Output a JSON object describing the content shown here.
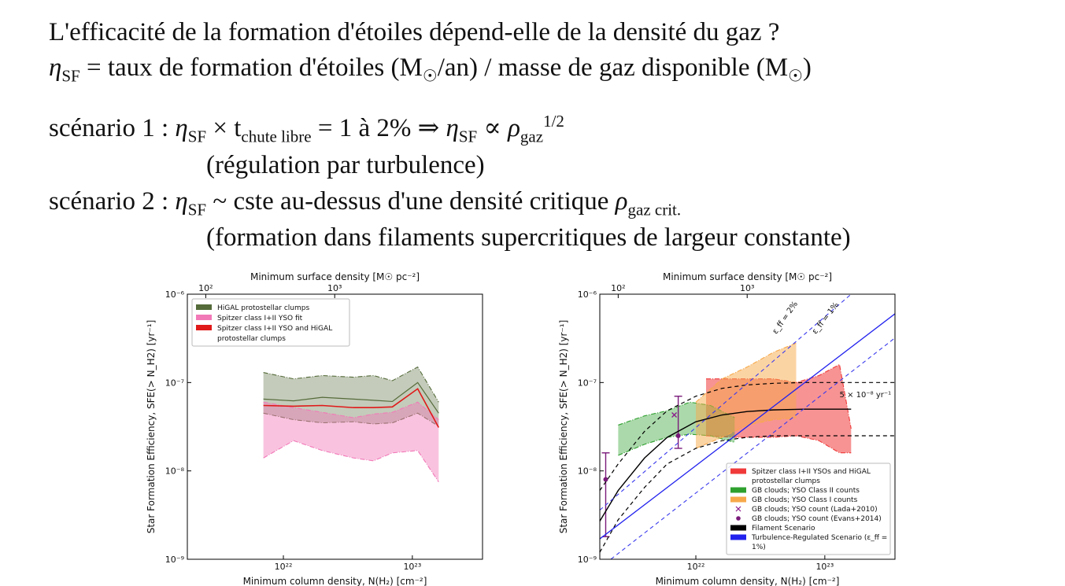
{
  "slide": {
    "line1": "L'efficacité de la formation d'étoiles dépend-elle de la densité du gaz ?",
    "line2": {
      "eta": "η",
      "eta_sub": "SF",
      "text_a": " = taux de formation d'étoiles (M",
      "sun": "☉",
      "text_b": "/an)  /  masse de gaz disponible (M",
      "sun2": "☉",
      "text_c": ")"
    },
    "scenario1": {
      "label": "scénario 1 :  ",
      "eta": "η",
      "eta_sub": "SF",
      "times": " × t",
      "t_sub": "chute libre",
      "eq": " = 1 à 2%  ⇒  ",
      "eta2": "η",
      "eta2_sub": "SF",
      "prop": " ∝ ",
      "rho": "ρ",
      "rho_sub": "gaz",
      "rho_sup": "1/2",
      "note": "(régulation par turbulence)"
    },
    "scenario2": {
      "label": "scénario 2 :  ",
      "eta": "η",
      "eta_sub": "SF",
      "text": " ~ cste au-dessus d'une densité critique ",
      "rho": "ρ",
      "rho_sub": "gaz crit.",
      "note": "(formation dans filaments supercritiques de largeur constante)"
    }
  },
  "chart_data": [
    {
      "type": "area",
      "title": "",
      "xlabel": "Minimum column density, N(H₂) [cm⁻²]",
      "ylabel": "Star Formation Efficiency, SFE(> N_H2) [yr⁻¹]",
      "top_xlabel": "Minimum surface density [M☉ pc⁻²]",
      "xscale": "log",
      "yscale": "log",
      "xlim": [
        1.8e+21,
        3.5e+23
      ],
      "ylim": [
        1e-09,
        1e-06
      ],
      "x_ticks": [
        {
          "v": 1e+22,
          "label": "10²²"
        },
        {
          "v": 1e+23,
          "label": "10²³"
        }
      ],
      "y_ticks": [
        {
          "v": 1e-09,
          "label": "10⁻⁹"
        },
        {
          "v": 1e-08,
          "label": "10⁻⁸"
        },
        {
          "v": 1e-07,
          "label": "10⁻⁷"
        },
        {
          "v": 1e-06,
          "label": "10⁻⁶"
        }
      ],
      "top_ticks": [
        {
          "v": 2.5e+21,
          "label": "10²"
        },
        {
          "v": 2.5e+22,
          "label": "10³"
        }
      ],
      "legend_position": "top-left",
      "colors": {
        "higal": "#556b3a",
        "yso": "#f279b8",
        "combined": "#e01919"
      },
      "series": [
        {
          "name": "HiGAL protostellar clumps",
          "kind": "band",
          "color": "#556b3a",
          "opacity": 0.35,
          "x": [
            7e+21,
            1.2e+22,
            2e+22,
            3.5e+22,
            5e+22,
            7e+22,
            1.1e+23,
            1.6e+23
          ],
          "low": [
            4.5e-08,
            3.8e-08,
            3.5e-08,
            3.6e-08,
            3.4e-08,
            3.5e-08,
            4.5e-08,
            3.2e-08
          ],
          "high": [
            1.3e-07,
            1.1e-07,
            1.2e-07,
            1.15e-07,
            1.2e-07,
            1.05e-07,
            1.5e-07,
            6e-08
          ]
        },
        {
          "name": "Spitzer class I+II YSO fit",
          "kind": "band",
          "color": "#f279b8",
          "opacity": 0.45,
          "x": [
            7e+21,
            1.2e+22,
            2e+22,
            3.5e+22,
            5e+22,
            7e+22,
            1.1e+23,
            1.6e+23
          ],
          "low": [
            1.4e-08,
            2.2e-08,
            1.7e-08,
            1.4e-08,
            1.3e-08,
            1.6e-08,
            1.7e-08,
            7.5e-09
          ],
          "high": [
            6e-08,
            5.2e-08,
            4.6e-08,
            4e-08,
            4.4e-08,
            4.6e-08,
            6e-08,
            3.8e-08
          ]
        },
        {
          "name": "Spitzer class I+II YSO and HiGAL protostellar clumps",
          "kind": "line",
          "color": "#e01919",
          "x": [
            7e+21,
            1.2e+22,
            2e+22,
            3.5e+22,
            5e+22,
            7e+22,
            1.1e+23,
            1.6e+23
          ],
          "y": [
            5.5e-08,
            5.4e-08,
            5.5e-08,
            5.2e-08,
            5.2e-08,
            5.3e-08,
            8.5e-08,
            3.1e-08
          ]
        },
        {
          "name": "",
          "kind": "line",
          "color": "#556b3a",
          "width": 1.2,
          "x": [
            7e+21,
            1.2e+22,
            2e+22,
            3.5e+22,
            5e+22,
            7e+22,
            1.1e+23,
            1.6e+23
          ],
          "y": [
            6.5e-08,
            6.2e-08,
            6.8e-08,
            6.5e-08,
            6.3e-08,
            6.1e-08,
            1e-07,
            4.5e-08
          ]
        }
      ]
    },
    {
      "type": "area",
      "title": "",
      "xlabel": "Minimum column density, N(H₂) [cm⁻²]",
      "ylabel": "Star Formation Efficiency, SFE(> N_H2) [yr⁻¹]",
      "top_xlabel": "Minimum surface density [M☉ pc⁻²]",
      "xscale": "log",
      "yscale": "log",
      "xlim": [
        1.8e+21,
        3.5e+23
      ],
      "ylim": [
        1e-09,
        1e-06
      ],
      "x_ticks": [
        {
          "v": 1e+22,
          "label": "10²²"
        },
        {
          "v": 1e+23,
          "label": "10²³"
        }
      ],
      "y_ticks": [
        {
          "v": 1e-09,
          "label": "10⁻⁹"
        },
        {
          "v": 1e-08,
          "label": "10⁻⁸"
        },
        {
          "v": 1e-07,
          "label": "10⁻⁷"
        },
        {
          "v": 1e-06,
          "label": "10⁻⁶"
        }
      ],
      "top_ticks": [
        {
          "v": 2.5e+21,
          "label": "10²"
        },
        {
          "v": 2.5e+22,
          "label": "10³"
        }
      ],
      "legend_position": "bottom-right",
      "annotations": [
        {
          "text": "ε_ff = 2%",
          "x": 4.2e+22,
          "y": 3.5e-07,
          "rotate": -55
        },
        {
          "text": "ε_ff = 1%",
          "x": 8.5e+22,
          "y": 3.5e-07,
          "rotate": -52
        },
        {
          "text": "5 × 10⁻⁸ yr⁻¹",
          "x": 1.3e+23,
          "y": 6.8e-08,
          "rotate": 0
        }
      ],
      "series": [
        {
          "name": "Spitzer class I+II YSOs and HiGAL protostellar clumps",
          "kind": "band",
          "color": "#f03a3a",
          "opacity": 0.55,
          "x": [
            1.2e+22,
            2e+22,
            4e+22,
            6e+22,
            9e+22,
            1.3e+23,
            1.6e+23
          ],
          "low": [
            2.5e-08,
            2.4e-08,
            2.4e-08,
            2.5e-08,
            2.2e-08,
            1.6e-08,
            1.6e-08
          ],
          "high": [
            1.1e-07,
            1.1e-07,
            1.1e-07,
            1e-07,
            1.2e-07,
            1.6e-07,
            3e-08
          ]
        },
        {
          "name": "GB clouds; YSO Class II counts",
          "kind": "band",
          "color": "#2ea02e",
          "opacity": 0.4,
          "x": [
            2.5e+21,
            4e+21,
            6e+21,
            9e+21,
            1.3e+22,
            2e+22
          ],
          "low": [
            1.5e-08,
            2e-08,
            2.4e-08,
            2.6e-08,
            2.5e-08,
            2.1e-08
          ],
          "high": [
            3.3e-08,
            4.2e-08,
            4.8e-08,
            6e-08,
            5.5e-08,
            4e-08
          ]
        },
        {
          "name": "GB clouds; YSO Class I counts",
          "kind": "band",
          "color": "#f7a94a",
          "opacity": 0.5,
          "x": [
            1e+22,
            1.6e+22,
            2.5e+22,
            4e+22,
            6e+22
          ],
          "low": [
            1.8e-08,
            2.4e-08,
            3.3e-08,
            3.8e-08,
            4e-08
          ],
          "high": [
            6e-08,
            1.1e-07,
            1.5e-07,
            2.2e-07,
            2.8e-07
          ]
        },
        {
          "name": "GB clouds; YSO count (Lada+2010)",
          "kind": "marker",
          "marker": "x",
          "color": "#8a1a8a",
          "x": [
            6.8e+21
          ],
          "y": [
            4.3e-08
          ]
        },
        {
          "name": "GB clouds; YSO count (Evans+2014)",
          "kind": "errorpoint",
          "color": "#7a1a7a",
          "x": [
            2e+21,
            7.3e+21
          ],
          "y": [
            8e-09,
            2.5e-08
          ],
          "low": [
            1.8e-09,
            1.8e-08
          ],
          "high": [
            1.6e-08,
            7e-08
          ]
        },
        {
          "name": "Filament Scenario",
          "kind": "curve",
          "color": "#000000",
          "width": 1.4,
          "x": [
            1.8e+21,
            2.5e+21,
            4e+21,
            6e+21,
            1e+22,
            1.6e+22,
            2.5e+22,
            4e+22,
            7e+22,
            1.6e+23
          ],
          "y": [
            2.7e-09,
            6e-09,
            1.4e-08,
            2.4e-08,
            3.6e-08,
            4.3e-08,
            4.7e-08,
            4.9e-08,
            5e-08,
            5e-08
          ]
        },
        {
          "name": "",
          "kind": "curve",
          "color": "#000000",
          "dash": "5,4",
          "width": 1.2,
          "x": [
            1.8e+21,
            2.5e+21,
            4e+21,
            6e+21,
            1e+22,
            1.6e+22,
            2.5e+22,
            4e+22,
            7e+22,
            3.5e+23
          ],
          "y": [
            6e-09,
            1.2e-08,
            2.8e-08,
            4.8e-08,
            7e-08,
            8.6e-08,
            9.4e-08,
            9.8e-08,
            1e-07,
            1e-07
          ]
        },
        {
          "name": "",
          "kind": "curve",
          "color": "#000000",
          "dash": "5,4",
          "width": 1.2,
          "x": [
            1.8e+21,
            2.5e+21,
            4e+21,
            6e+21,
            1e+22,
            1.6e+22,
            2.5e+22,
            4e+22,
            7e+22,
            3.5e+23
          ],
          "y": [
            1.2e-09,
            2.8e-09,
            6.5e-09,
            1.2e-08,
            1.8e-08,
            2.2e-08,
            2.4e-08,
            2.5e-08,
            2.5e-08,
            2.5e-08
          ]
        },
        {
          "name": "Turbulence-Regulated Scenario (ε_ff = 1%)",
          "kind": "line",
          "color": "#2222ee",
          "width": 1.3,
          "x": [
            1.8e+21,
            3.5e+23
          ],
          "y": [
            1.7e-09,
            6e-07
          ]
        },
        {
          "name": "",
          "kind": "line",
          "color": "#3a3aee",
          "dash": "5,4",
          "width": 1.1,
          "x": [
            1.8e+21,
            1.6e+23
          ],
          "y": [
            3.6e-09,
            1e-06
          ]
        },
        {
          "name": "",
          "kind": "line",
          "color": "#3a3aee",
          "dash": "5,4",
          "width": 1.1,
          "x": [
            1.8e+21,
            3.5e+23
          ],
          "y": [
            8e-10,
            3.2e-07
          ]
        }
      ]
    }
  ]
}
